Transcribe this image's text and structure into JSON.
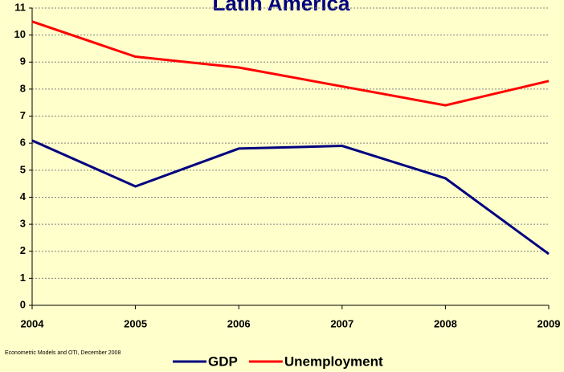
{
  "chart_data": {
    "type": "line",
    "title": "Latin America",
    "categories": [
      "2004",
      "2005",
      "2006",
      "2007",
      "2008",
      "2009"
    ],
    "series": [
      {
        "name": "GDP",
        "color": "#000080",
        "values": [
          6.1,
          4.4,
          5.8,
          5.9,
          4.7,
          1.9
        ]
      },
      {
        "name": "Unemployment",
        "color": "#ff0000",
        "values": [
          10.5,
          9.2,
          8.8,
          8.1,
          7.4,
          8.3
        ]
      }
    ],
    "ylim": [
      0,
      11
    ],
    "yticks": [
      0,
      1,
      2,
      3,
      4,
      5,
      6,
      7,
      8,
      9,
      10,
      11
    ],
    "grid": true,
    "legend": "bottom",
    "source": "Econometric Models and OTI, December 2008"
  }
}
